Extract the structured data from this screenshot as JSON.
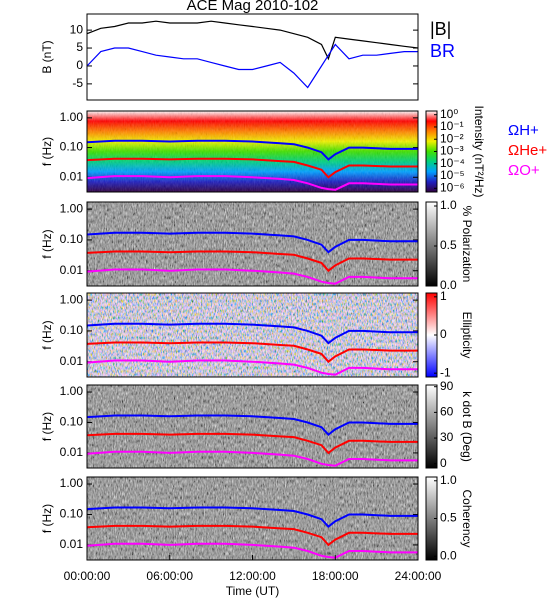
{
  "chart_data": [
    {
      "type": "line",
      "title": "ACE Mag 2010-102",
      "ylabel": "B (nT)",
      "xlim": [
        0,
        24
      ],
      "ylim": [
        -9.5,
        14.5
      ],
      "yticks": [
        -5,
        0,
        5,
        10
      ],
      "legend": true,
      "x": [
        0,
        1,
        2,
        3,
        4,
        5,
        6,
        7,
        8,
        9,
        10,
        11,
        12,
        13,
        14,
        15,
        16,
        17,
        17.5,
        18,
        19,
        20,
        21,
        22,
        23,
        24
      ],
      "series": [
        {
          "name": "|B|",
          "color": "#000000",
          "values": [
            9,
            10.5,
            11,
            12,
            12,
            12.5,
            12,
            12,
            12,
            12.5,
            12,
            11.5,
            11,
            10.5,
            10,
            9,
            8,
            6,
            2,
            8,
            7.5,
            7,
            6.5,
            6,
            5.5,
            5
          ]
        },
        {
          "name": "BR",
          "color": "#0000ff",
          "values": [
            0,
            4,
            5,
            5,
            4,
            3,
            2.5,
            2,
            2,
            1,
            0,
            -1,
            -1,
            0,
            1,
            -2,
            -6,
            0,
            3,
            6,
            2,
            3,
            3,
            3.5,
            4,
            4
          ]
        }
      ]
    },
    {
      "type": "spectrogram",
      "ylabel": "f (Hz)",
      "xlim": [
        0,
        24
      ],
      "log": true,
      "ylim": [
        0.0032,
        1.7
      ],
      "yticks": [
        {
          "value": 1,
          "label": "1.00"
        },
        {
          "value": 0.1,
          "label": "0.10"
        },
        {
          "value": 0.01,
          "label": "0.01"
        }
      ],
      "legend": true,
      "colorbar": {
        "label": "Intensity (nT²/Hz)",
        "log": true,
        "lim": [
          5e-07,
          2
        ],
        "ticks": [
          {
            "value": 1,
            "label": "10⁰"
          },
          {
            "value": 0.1,
            "label": "10⁻¹"
          },
          {
            "value": 0.01,
            "label": "10⁻²"
          },
          {
            "value": 0.001,
            "label": "10⁻³"
          },
          {
            "value": 0.0001,
            "label": "10⁻⁴"
          },
          {
            "value": 1e-05,
            "label": "10⁻⁵"
          },
          {
            "value": 1e-06,
            "label": "10⁻⁶"
          }
        ],
        "colorscale": [
          "#300040",
          "#2020c0",
          "#00a0ff",
          "#00d080",
          "#40e000",
          "#f0f000",
          "#ff8000",
          "#ff0000",
          "#ffffff"
        ]
      },
      "x": [
        0,
        2,
        4,
        6,
        8,
        10,
        12,
        14,
        15,
        16,
        17,
        17.5,
        18,
        19,
        20,
        22,
        24
      ],
      "series": [
        {
          "name": "ΩH+",
          "color": "#0000ff",
          "values": [
            0.15,
            0.17,
            0.17,
            0.16,
            0.17,
            0.17,
            0.16,
            0.14,
            0.13,
            0.1,
            0.07,
            0.04,
            0.06,
            0.1,
            0.1,
            0.09,
            0.09
          ]
        },
        {
          "name": "ΩHe+",
          "color": "#ff0000",
          "values": [
            0.038,
            0.042,
            0.042,
            0.04,
            0.042,
            0.042,
            0.04,
            0.035,
            0.033,
            0.025,
            0.018,
            0.01,
            0.015,
            0.025,
            0.025,
            0.023,
            0.023
          ]
        },
        {
          "name": "ΩO+",
          "color": "#ff00ff",
          "values": [
            0.0094,
            0.011,
            0.011,
            0.01,
            0.011,
            0.011,
            0.01,
            0.0088,
            0.0081,
            0.0063,
            0.0044,
            0.004,
            0.0038,
            0.0063,
            0.0063,
            0.0057,
            0.0057
          ]
        }
      ]
    },
    {
      "type": "spectrogram",
      "ylabel": "f (Hz)",
      "xlim": [
        0,
        24
      ],
      "log": true,
      "ylim": [
        0.0032,
        1.7
      ],
      "yticks": [
        {
          "value": 1,
          "label": "1.00"
        },
        {
          "value": 0.1,
          "label": "0.10"
        },
        {
          "value": 0.01,
          "label": "0.01"
        }
      ],
      "colorbar": {
        "label": "% Polarization",
        "lim": [
          0,
          1.05
        ],
        "ticks": [
          {
            "value": 0,
            "label": "0.0"
          },
          {
            "value": 0.5,
            "label": "0.5"
          },
          {
            "value": 1,
            "label": "1.0"
          }
        ],
        "colorscale": [
          "#000000",
          "#ffffff"
        ]
      },
      "x": [
        0,
        2,
        4,
        6,
        8,
        10,
        12,
        14,
        15,
        16,
        17,
        17.5,
        18,
        19,
        20,
        22,
        24
      ],
      "series": [
        {
          "color": "#0000ff",
          "values": [
            0.15,
            0.17,
            0.17,
            0.16,
            0.17,
            0.17,
            0.16,
            0.14,
            0.13,
            0.1,
            0.07,
            0.04,
            0.06,
            0.1,
            0.1,
            0.09,
            0.09
          ]
        },
        {
          "color": "#ff0000",
          "values": [
            0.038,
            0.042,
            0.042,
            0.04,
            0.042,
            0.042,
            0.04,
            0.035,
            0.033,
            0.025,
            0.018,
            0.01,
            0.015,
            0.025,
            0.025,
            0.023,
            0.023
          ]
        },
        {
          "color": "#ff00ff",
          "values": [
            0.0094,
            0.011,
            0.011,
            0.01,
            0.011,
            0.011,
            0.01,
            0.0088,
            0.0081,
            0.0063,
            0.0044,
            0.004,
            0.0038,
            0.0063,
            0.0063,
            0.0057,
            0.0057
          ]
        }
      ]
    },
    {
      "type": "spectrogram",
      "ylabel": "f (Hz)",
      "xlim": [
        0,
        24
      ],
      "log": true,
      "ylim": [
        0.0032,
        1.7
      ],
      "yticks": [
        {
          "value": 1,
          "label": "1.00"
        },
        {
          "value": 0.1,
          "label": "0.10"
        },
        {
          "value": 0.01,
          "label": "0.01"
        }
      ],
      "colorbar": {
        "label": "Ellipticity",
        "lim": [
          -1.1,
          1.1
        ],
        "ticks": [
          -1,
          0,
          1
        ],
        "colorscale": [
          "#0000ff",
          "#ffffff",
          "#ff0000"
        ]
      },
      "x": [
        0,
        2,
        4,
        6,
        8,
        10,
        12,
        14,
        15,
        16,
        17,
        17.5,
        18,
        19,
        20,
        22,
        24
      ],
      "series": [
        {
          "color": "#0000ff",
          "values": [
            0.15,
            0.17,
            0.17,
            0.16,
            0.17,
            0.17,
            0.16,
            0.14,
            0.13,
            0.1,
            0.07,
            0.04,
            0.06,
            0.1,
            0.1,
            0.09,
            0.09
          ]
        },
        {
          "color": "#ff0000",
          "values": [
            0.038,
            0.042,
            0.042,
            0.04,
            0.042,
            0.042,
            0.04,
            0.035,
            0.033,
            0.025,
            0.018,
            0.01,
            0.015,
            0.025,
            0.025,
            0.023,
            0.023
          ]
        },
        {
          "color": "#ff00ff",
          "values": [
            0.0094,
            0.011,
            0.011,
            0.01,
            0.011,
            0.011,
            0.01,
            0.0088,
            0.0081,
            0.0063,
            0.0044,
            0.004,
            0.0038,
            0.0063,
            0.0063,
            0.0057,
            0.0057
          ]
        }
      ]
    },
    {
      "type": "spectrogram",
      "ylabel": "f (Hz)",
      "xlim": [
        0,
        24
      ],
      "log": true,
      "ylim": [
        0.0032,
        1.7
      ],
      "yticks": [
        {
          "value": 1,
          "label": "1.00"
        },
        {
          "value": 0.1,
          "label": "0.10"
        },
        {
          "value": 0.01,
          "label": "0.01"
        }
      ],
      "colorbar": {
        "label": "k dot B (Deg)",
        "lim": [
          -5,
          92
        ],
        "ticks": [
          0,
          30,
          60,
          90
        ],
        "colorscale": [
          "#000000",
          "#ffffff"
        ]
      },
      "x": [
        0,
        2,
        4,
        6,
        8,
        10,
        12,
        14,
        15,
        16,
        17,
        17.5,
        18,
        19,
        20,
        22,
        24
      ],
      "series": [
        {
          "color": "#0000ff",
          "values": [
            0.15,
            0.17,
            0.17,
            0.16,
            0.17,
            0.17,
            0.16,
            0.14,
            0.13,
            0.1,
            0.07,
            0.04,
            0.06,
            0.1,
            0.1,
            0.09,
            0.09
          ]
        },
        {
          "color": "#ff0000",
          "values": [
            0.038,
            0.042,
            0.042,
            0.04,
            0.042,
            0.042,
            0.04,
            0.035,
            0.033,
            0.025,
            0.018,
            0.01,
            0.015,
            0.025,
            0.025,
            0.023,
            0.023
          ]
        },
        {
          "color": "#ff00ff",
          "values": [
            0.0094,
            0.011,
            0.011,
            0.01,
            0.011,
            0.011,
            0.01,
            0.0088,
            0.0081,
            0.0063,
            0.0044,
            0.004,
            0.0038,
            0.0063,
            0.0063,
            0.0057,
            0.0057
          ]
        }
      ]
    },
    {
      "type": "spectrogram",
      "ylabel": "f (Hz)",
      "xlim": [
        0,
        24
      ],
      "log": true,
      "ylim": [
        0.0032,
        1.7
      ],
      "yticks": [
        {
          "value": 1,
          "label": "1.00"
        },
        {
          "value": 0.1,
          "label": "0.10"
        },
        {
          "value": 0.01,
          "label": "0.01"
        }
      ],
      "xticks": [
        {
          "value": 0,
          "label": "00:00:00"
        },
        {
          "value": 6,
          "label": "06:00:00"
        },
        {
          "value": 12,
          "label": "12:00:00"
        },
        {
          "value": 18,
          "label": "18:00:00"
        },
        {
          "value": 24,
          "label": "24:00:00"
        }
      ],
      "xlabel": "Time (UT)",
      "colorbar": {
        "label": "Coherency",
        "lim": [
          -0.05,
          1.05
        ],
        "ticks": [
          {
            "value": 0,
            "label": "0.0"
          },
          {
            "value": 0.5,
            "label": "0.5"
          },
          {
            "value": 1,
            "label": "1.0"
          }
        ],
        "colorscale": [
          "#000000",
          "#ffffff"
        ]
      },
      "x": [
        0,
        2,
        4,
        6,
        8,
        10,
        12,
        14,
        15,
        16,
        17,
        17.5,
        18,
        19,
        20,
        22,
        24
      ],
      "series": [
        {
          "color": "#0000ff",
          "values": [
            0.15,
            0.17,
            0.17,
            0.16,
            0.17,
            0.17,
            0.16,
            0.14,
            0.13,
            0.1,
            0.07,
            0.04,
            0.06,
            0.1,
            0.1,
            0.09,
            0.09
          ]
        },
        {
          "color": "#ff0000",
          "values": [
            0.038,
            0.042,
            0.042,
            0.04,
            0.042,
            0.042,
            0.04,
            0.035,
            0.033,
            0.025,
            0.018,
            0.01,
            0.015,
            0.025,
            0.025,
            0.023,
            0.023
          ]
        },
        {
          "color": "#ff00ff",
          "values": [
            0.0094,
            0.011,
            0.011,
            0.01,
            0.011,
            0.011,
            0.01,
            0.0088,
            0.0081,
            0.0063,
            0.0044,
            0.004,
            0.0038,
            0.0063,
            0.0063,
            0.0057,
            0.0057
          ]
        }
      ]
    }
  ]
}
